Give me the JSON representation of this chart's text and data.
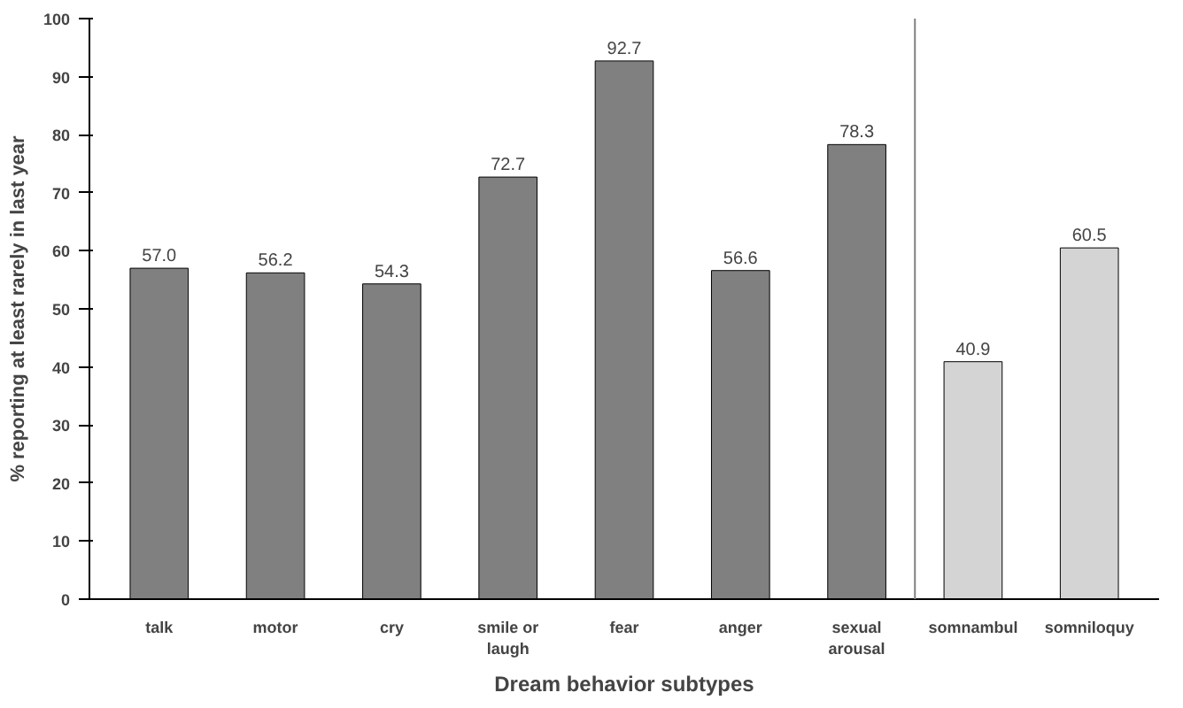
{
  "chart_data": {
    "type": "bar",
    "xlabel": "Dream behavior subtypes",
    "ylabel": "% reporting at least rarely in last year",
    "categories": [
      "talk",
      "motor",
      "cry",
      "smile or\nlaugh",
      "fear",
      "anger",
      "sexual\narousal",
      "somnambul",
      "somniloquy"
    ],
    "values": [
      57.0,
      56.2,
      54.3,
      72.7,
      92.7,
      56.6,
      78.3,
      40.9,
      60.5
    ],
    "value_labels": [
      "57.0",
      "56.2",
      "54.3",
      "72.7",
      "92.7",
      "56.6",
      "78.3",
      "40.9",
      "60.5"
    ],
    "colors": [
      "#808080",
      "#808080",
      "#808080",
      "#808080",
      "#808080",
      "#808080",
      "#808080",
      "#d4d4d4",
      "#d4d4d4"
    ],
    "ylim": [
      0,
      100
    ],
    "yticks": [
      0,
      10,
      20,
      30,
      40,
      50,
      60,
      70,
      80,
      90,
      100
    ],
    "grid": false
  }
}
